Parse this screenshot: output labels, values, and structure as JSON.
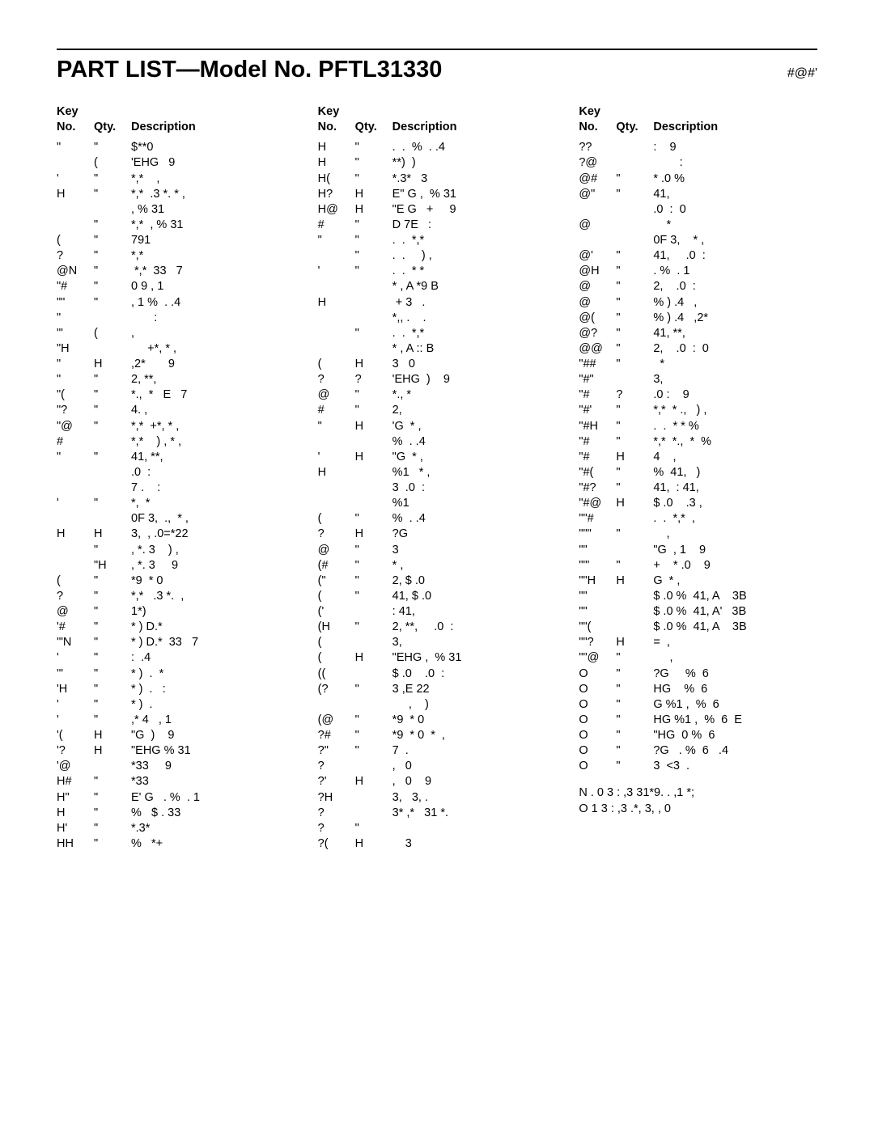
{
  "title": "PART LIST—Model No. PFTL31330",
  "page_code": "#@#'",
  "headers": {
    "key_label": "Key",
    "no": "No.",
    "qty": "Qty.",
    "desc": "Description"
  },
  "columns": [
    [
      {
        "key": "\"",
        "qty": "\"",
        "desc": "$**0"
      },
      {
        "key": "",
        "qty": "(",
        "desc": "'EHG   9"
      },
      {
        "key": "'",
        "qty": "\"",
        "desc": "*,*    ,"
      },
      {
        "key": "H",
        "qty": "\"",
        "desc": "*,*  .3 *. * ,"
      },
      {
        "key": "",
        "qty": "",
        "desc": ", % 31"
      },
      {
        "key": "",
        "qty": "\"",
        "desc": "*,*  , % 31"
      },
      {
        "key": "(",
        "qty": "\"",
        "desc": "791"
      },
      {
        "key": "?",
        "qty": "\"",
        "desc": "*,*"
      },
      {
        "key": "@N",
        "qty": "\"",
        "desc": " *,*  33   7"
      },
      {
        "key": "\"#",
        "qty": "\"",
        "desc": "0 9 , 1"
      },
      {
        "key": "\"\"",
        "qty": "\"",
        "desc": ", 1 %  . .4"
      },
      {
        "key": "\"",
        "qty": "",
        "desc": "       :"
      },
      {
        "key": "\"'",
        "qty": "(",
        "desc": ","
      },
      {
        "key": "\"H",
        "qty": "",
        "desc": "     +*, * ,"
      },
      {
        "key": "\"",
        "qty": "H",
        "desc": ",2*       9"
      },
      {
        "key": "\"",
        "qty": "\"",
        "desc": "2, **,"
      },
      {
        "key": "\"(",
        "qty": "\"",
        "desc": "*.,  *   E   7"
      },
      {
        "key": "\"?",
        "qty": "\"",
        "desc": "4. ,"
      },
      {
        "key": "\"@",
        "qty": "\"",
        "desc": "*,*  +*, * ,"
      },
      {
        "key": "#",
        "qty": "",
        "desc": "*,*    ) , * ,"
      },
      {
        "key": "\"",
        "qty": "\"",
        "desc": "41, **,"
      },
      {
        "key": "",
        "qty": "",
        "desc": ".0  :"
      },
      {
        "key": "",
        "qty": "",
        "desc": "7 .    :"
      },
      {
        "key": "'",
        "qty": "\"",
        "desc": "*,  *"
      },
      {
        "key": "",
        "qty": "",
        "desc": "0F 3,  .,  * ,"
      },
      {
        "key": "H",
        "qty": "H",
        "desc": "3,  , .0=*22"
      },
      {
        "key": "",
        "qty": "\"",
        "desc": ", *. 3    ) ,"
      },
      {
        "key": "",
        "qty": "\"H",
        "desc": ", *. 3     9"
      },
      {
        "key": "(",
        "qty": "\"",
        "desc": "*9  * 0"
      },
      {
        "key": "?",
        "qty": "\"",
        "desc": "*,*   .3 *.  ,"
      },
      {
        "key": "@",
        "qty": "\"",
        "desc": "1*)"
      },
      {
        "key": "'#",
        "qty": "\"",
        "desc": "* ) D.*"
      },
      {
        "key": "'\"N",
        "qty": "\"",
        "desc": "* ) D.*  33   7"
      },
      {
        "key": "'",
        "qty": "\"",
        "desc": ":  .4"
      },
      {
        "key": "'\"",
        "qty": "\"",
        "desc": "* )  .  *"
      },
      {
        "key": "'H",
        "qty": "\"",
        "desc": "* )  .   :"
      },
      {
        "key": "'",
        "qty": "\"",
        "desc": "* )  ."
      },
      {
        "key": "'",
        "qty": "\"",
        "desc": ",* 4   , 1"
      },
      {
        "key": "'(",
        "qty": "H",
        "desc": "\"G  )    9"
      },
      {
        "key": "'?",
        "qty": "H",
        "desc": "\"EHG % 31"
      },
      {
        "key": "'@",
        "qty": "",
        "desc": "*33     9"
      },
      {
        "key": "H#",
        "qty": "\"",
        "desc": "*33"
      },
      {
        "key": "H\"",
        "qty": "\"",
        "desc": "E' G   . %  . 1"
      },
      {
        "key": "H",
        "qty": "\"",
        "desc": "%   $ . 33"
      },
      {
        "key": "H'",
        "qty": "\"",
        "desc": "*.3*"
      },
      {
        "key": "HH",
        "qty": "\"",
        "desc": "%   *+"
      }
    ],
    [
      {
        "key": "H",
        "qty": "\"",
        "desc": ".  .  %  . .4"
      },
      {
        "key": "H",
        "qty": "\"",
        "desc": "**)  )"
      },
      {
        "key": "H(",
        "qty": "\"",
        "desc": "*.3*   3"
      },
      {
        "key": "H?",
        "qty": "H",
        "desc": "E\" G ,  % 31"
      },
      {
        "key": "H@",
        "qty": "H",
        "desc": "\"E G   +     9"
      },
      {
        "key": "#",
        "qty": "\"",
        "desc": "D 7E   :"
      },
      {
        "key": "\"",
        "qty": "\"",
        "desc": ".  .  *,*"
      },
      {
        "key": "",
        "qty": "\"",
        "desc": ".  .     ) ,"
      },
      {
        "key": "'",
        "qty": "\"",
        "desc": ".  .  * *"
      },
      {
        "key": "",
        "qty": "",
        "desc": "* , A *9 B"
      },
      {
        "key": "H",
        "qty": "",
        "desc": " + 3   ."
      },
      {
        "key": "",
        "qty": "",
        "desc": "*,, .    ."
      },
      {
        "key": "",
        "qty": "\"",
        "desc": ".  .  *,*"
      },
      {
        "key": "",
        "qty": "",
        "desc": "* , A :: B"
      },
      {
        "key": "(",
        "qty": "H",
        "desc": "3   0"
      },
      {
        "key": "?",
        "qty": "?",
        "desc": "'EHG  )    9"
      },
      {
        "key": "@",
        "qty": "\"",
        "desc": "*., *"
      },
      {
        "key": "#",
        "qty": "\"",
        "desc": "2,"
      },
      {
        "key": "\"",
        "qty": "H",
        "desc": "'G  * ,"
      },
      {
        "key": "",
        "qty": "",
        "desc": "%  . .4"
      },
      {
        "key": "'",
        "qty": "H",
        "desc": "\"G  * ,"
      },
      {
        "key": "H",
        "qty": "",
        "desc": "%1   * ,"
      },
      {
        "key": "",
        "qty": "",
        "desc": "3  .0  :"
      },
      {
        "key": "",
        "qty": "",
        "desc": "%1"
      },
      {
        "key": "(",
        "qty": "\"",
        "desc": "%  . .4"
      },
      {
        "key": "?",
        "qty": "H",
        "desc": "?G"
      },
      {
        "key": "@",
        "qty": "\"",
        "desc": "3"
      },
      {
        "key": "(#",
        "qty": "\"",
        "desc": "* ,"
      },
      {
        "key": "(\"",
        "qty": "\"",
        "desc": "2, $ .0"
      },
      {
        "key": "(",
        "qty": "\"",
        "desc": "41, $ .0"
      },
      {
        "key": "('",
        "qty": "",
        "desc": ": 41,"
      },
      {
        "key": "(H",
        "qty": "\"",
        "desc": "2, **,     .0  :"
      },
      {
        "key": "(",
        "qty": "",
        "desc": "3,"
      },
      {
        "key": "(",
        "qty": "H",
        "desc": "\"EHG ,  % 31"
      },
      {
        "key": "((",
        "qty": "",
        "desc": "$ .0    .0  :"
      },
      {
        "key": "(?",
        "qty": "\"",
        "desc": "3 ,E 22"
      },
      {
        "key": "",
        "qty": "",
        "desc": "     ,    )"
      },
      {
        "key": "(@",
        "qty": "\"",
        "desc": "*9  * 0"
      },
      {
        "key": "?#",
        "qty": "\"",
        "desc": "*9  * 0  *  ,"
      },
      {
        "key": "?\"",
        "qty": "\"",
        "desc": "7  ."
      },
      {
        "key": "?",
        "qty": "",
        "desc": ",   0"
      },
      {
        "key": "?'",
        "qty": "H",
        "desc": ",   0    9"
      },
      {
        "key": "?H",
        "qty": "",
        "desc": "3,   3, ."
      },
      {
        "key": "?",
        "qty": "",
        "desc": "3* ,*   31 *."
      },
      {
        "key": "?",
        "qty": "\"",
        "desc": ""
      },
      {
        "key": "?(",
        "qty": "H",
        "desc": "    3"
      }
    ],
    [
      {
        "key": "??",
        "qty": "",
        "desc": ":    9"
      },
      {
        "key": "?@",
        "qty": "",
        "desc": "        :"
      },
      {
        "key": "@#",
        "qty": "\"",
        "desc": "* .0 %"
      },
      {
        "key": "@\"",
        "qty": "\"",
        "desc": "41,"
      },
      {
        "key": "",
        "qty": "",
        "desc": ".0  :  0"
      },
      {
        "key": "@",
        "qty": "",
        "desc": "    *"
      },
      {
        "key": "",
        "qty": "",
        "desc": "0F 3,    * ,"
      },
      {
        "key": "@'",
        "qty": "\"",
        "desc": "41,     .0  :"
      },
      {
        "key": "@H",
        "qty": "\"",
        "desc": ". %  . 1"
      },
      {
        "key": "@",
        "qty": "\"",
        "desc": "2,    .0  :"
      },
      {
        "key": "@",
        "qty": "\"",
        "desc": "% ) .4   ,"
      },
      {
        "key": "@(",
        "qty": "\"",
        "desc": "% ) .4   ,2*"
      },
      {
        "key": "@?",
        "qty": "\"",
        "desc": "41, **,"
      },
      {
        "key": "@@",
        "qty": "\"",
        "desc": "2,    .0  :  0"
      },
      {
        "key": "\"##",
        "qty": "\"",
        "desc": "  *"
      },
      {
        "key": "\"#\"",
        "qty": "",
        "desc": "3,"
      },
      {
        "key": "\"#",
        "qty": "?",
        "desc": ".0 :    9"
      },
      {
        "key": "\"#'",
        "qty": "\"",
        "desc": "*,*  * .,   ) ,"
      },
      {
        "key": "\"#H",
        "qty": "\"",
        "desc": ".  .  * * %"
      },
      {
        "key": "\"#",
        "qty": "\"",
        "desc": "*,*  *.,  *  %"
      },
      {
        "key": "\"#",
        "qty": "H",
        "desc": "4    ,"
      },
      {
        "key": "\"#(",
        "qty": "\"",
        "desc": "%  41,   )"
      },
      {
        "key": "\"#?",
        "qty": "\"",
        "desc": "41,  : 41,"
      },
      {
        "key": "\"#@",
        "qty": "H",
        "desc": "$ .0    .3 ,"
      },
      {
        "key": "\"\"#",
        "qty": "",
        "desc": ".  .  *,*  ,"
      },
      {
        "key": "\"\"\"",
        "qty": "\"",
        "desc": "    ,"
      },
      {
        "key": "\"\"",
        "qty": "",
        "desc": "\"G  , 1    9"
      },
      {
        "key": "\"\"'",
        "qty": "\"",
        "desc": "+    * .0    9"
      },
      {
        "key": "\"\"H",
        "qty": "H",
        "desc": "G  * ,"
      },
      {
        "key": "\"\"",
        "qty": "",
        "desc": "$ .0 %  41, A    3B"
      },
      {
        "key": "\"\"",
        "qty": "",
        "desc": "$ .0 %  41, A'   3B"
      },
      {
        "key": "\"\"(",
        "qty": "",
        "desc": "$ .0 %  41, A    3B"
      },
      {
        "key": "\"\"?",
        "qty": "H",
        "desc": "=  ,"
      },
      {
        "key": "\"\"@",
        "qty": "\"",
        "desc": "     ,"
      },
      {
        "key": "O",
        "qty": "\"",
        "desc": "?G     %  6"
      },
      {
        "key": "O",
        "qty": "\"",
        "desc": "HG    %  6"
      },
      {
        "key": "O",
        "qty": "\"",
        "desc": "G %1 ,  %  6"
      },
      {
        "key": "O",
        "qty": "\"",
        "desc": "HG %1 ,  %  6  E"
      },
      {
        "key": "O",
        "qty": "\"",
        "desc": "\"HG  0 %  6"
      },
      {
        "key": "O",
        "qty": "\"",
        "desc": "?G   . %  6   .4"
      },
      {
        "key": "O",
        "qty": "\"",
        "desc": "3  <3  ."
      }
    ]
  ],
  "footnotes": [
    "N .  0 3   :  ,3 31*9.  . ,1  *;",
    "O  1 3  :  ,3   .*,   3,  , 0"
  ]
}
